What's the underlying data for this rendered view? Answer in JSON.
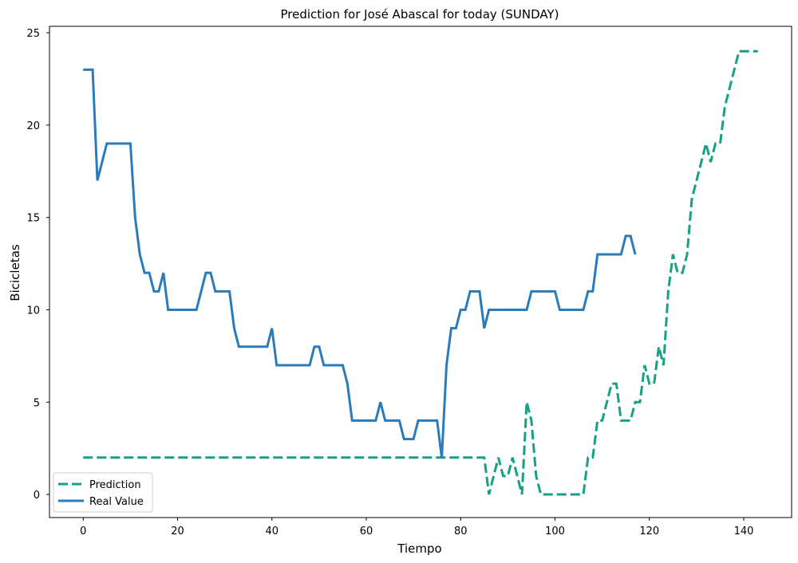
{
  "chart_data": {
    "type": "line",
    "title": "Prediction for José Abascal for today (SUNDAY)",
    "xlabel": "Tiempo",
    "ylabel": "Bicicletas",
    "xlim": [
      -7.15,
      150.15
    ],
    "ylim": [
      -1.25,
      25.35
    ],
    "xticks": [
      0,
      20,
      40,
      60,
      80,
      100,
      120,
      140
    ],
    "yticks": [
      0,
      5,
      10,
      15,
      20,
      25
    ],
    "grid": false,
    "legend_position": "lower left",
    "series": [
      {
        "name": "Prediction",
        "color": "#17a085",
        "style": "dashed",
        "points": [
          [
            0,
            2
          ],
          [
            85,
            2
          ],
          [
            86,
            0
          ],
          [
            87,
            1
          ],
          [
            88,
            2
          ],
          [
            89,
            1
          ],
          [
            90,
            1
          ],
          [
            91,
            2
          ],
          [
            92,
            1
          ],
          [
            93,
            0
          ],
          [
            94,
            5
          ],
          [
            95,
            4
          ],
          [
            96,
            1
          ],
          [
            97,
            0
          ],
          [
            106,
            0
          ],
          [
            107,
            2
          ],
          [
            108,
            2
          ],
          [
            109,
            4
          ],
          [
            110,
            4
          ],
          [
            111,
            5
          ],
          [
            112,
            6
          ],
          [
            113,
            6
          ],
          [
            114,
            4
          ],
          [
            116,
            4
          ],
          [
            117,
            5
          ],
          [
            118,
            5
          ],
          [
            119,
            7
          ],
          [
            120,
            6
          ],
          [
            121,
            6
          ],
          [
            122,
            8
          ],
          [
            123,
            7
          ],
          [
            124,
            11
          ],
          [
            125,
            13
          ],
          [
            126,
            12
          ],
          [
            127,
            12
          ],
          [
            128,
            13
          ],
          [
            129,
            16
          ],
          [
            130,
            17
          ],
          [
            131,
            18
          ],
          [
            132,
            19
          ],
          [
            133,
            18
          ],
          [
            134,
            19
          ],
          [
            135,
            19
          ],
          [
            136,
            21
          ],
          [
            137,
            22
          ],
          [
            138,
            23
          ],
          [
            139,
            24
          ],
          [
            143,
            24
          ]
        ]
      },
      {
        "name": "Real Value",
        "color": "#2b7bba",
        "style": "solid",
        "points": [
          [
            0,
            23
          ],
          [
            2,
            23
          ],
          [
            3,
            17
          ],
          [
            4,
            18
          ],
          [
            5,
            19
          ],
          [
            10,
            19
          ],
          [
            11,
            15
          ],
          [
            12,
            13
          ],
          [
            13,
            12
          ],
          [
            14,
            12
          ],
          [
            15,
            11
          ],
          [
            16,
            11
          ],
          [
            17,
            12
          ],
          [
            18,
            10
          ],
          [
            24,
            10
          ],
          [
            25,
            11
          ],
          [
            26,
            12
          ],
          [
            27,
            12
          ],
          [
            28,
            11
          ],
          [
            31,
            11
          ],
          [
            32,
            9
          ],
          [
            33,
            8
          ],
          [
            39,
            8
          ],
          [
            40,
            9
          ],
          [
            41,
            7
          ],
          [
            48,
            7
          ],
          [
            49,
            8
          ],
          [
            50,
            8
          ],
          [
            51,
            7
          ],
          [
            55,
            7
          ],
          [
            56,
            6
          ],
          [
            57,
            4
          ],
          [
            62,
            4
          ],
          [
            63,
            5
          ],
          [
            64,
            4
          ],
          [
            67,
            4
          ],
          [
            68,
            3
          ],
          [
            70,
            3
          ],
          [
            71,
            4
          ],
          [
            75,
            4
          ],
          [
            76,
            2
          ],
          [
            77,
            7
          ],
          [
            78,
            9
          ],
          [
            79,
            9
          ],
          [
            80,
            10
          ],
          [
            81,
            10
          ],
          [
            82,
            11
          ],
          [
            84,
            11
          ],
          [
            85,
            9
          ],
          [
            86,
            10
          ],
          [
            94,
            10
          ],
          [
            95,
            11
          ],
          [
            100,
            11
          ],
          [
            101,
            10
          ],
          [
            106,
            10
          ],
          [
            107,
            11
          ],
          [
            108,
            11
          ],
          [
            109,
            13
          ],
          [
            114,
            13
          ],
          [
            115,
            14
          ],
          [
            116,
            14
          ],
          [
            117,
            13
          ]
        ]
      }
    ]
  }
}
